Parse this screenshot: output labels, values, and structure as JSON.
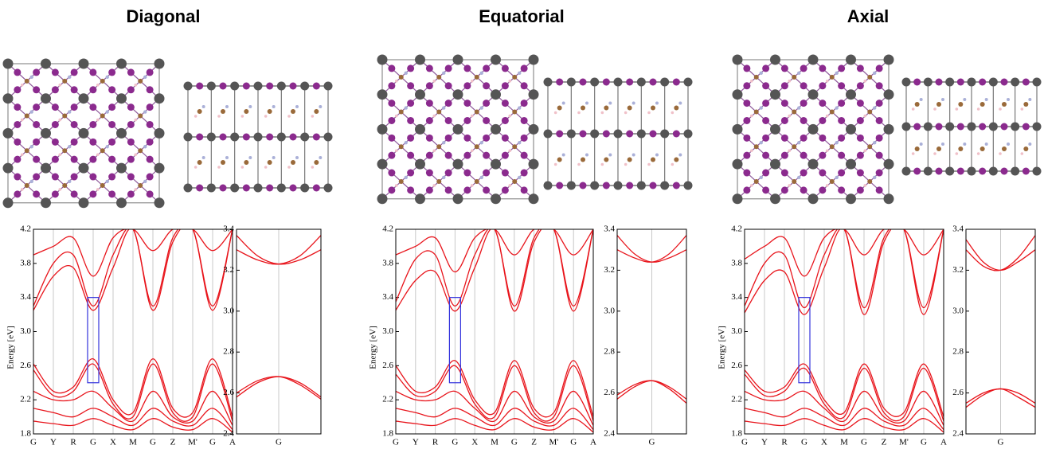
{
  "chart_data": [
    {
      "type": "line",
      "title": "Diagonal",
      "y_label": "Energy [eV]",
      "color": "#e8141b",
      "categories": [
        "G",
        "Y",
        "R",
        "G",
        "X",
        "M",
        "G",
        "Z",
        "M'",
        "G",
        "A"
      ],
      "ylim": [
        1.8,
        4.2
      ],
      "yticks": [
        1.8,
        2.2,
        2.6,
        {
          "value": 3,
          "label": "3.0"
        },
        3.4,
        3.8,
        4.2
      ],
      "series": [
        {
          "values": [
            3.25,
            3.65,
            3.75,
            3.25,
            3.75,
            4.2,
            3.25,
            4.05,
            4.2,
            3.25,
            4.2
          ]
        },
        {
          "values": [
            3.3,
            3.8,
            3.9,
            3.3,
            3.9,
            4.2,
            3.3,
            4.1,
            4.2,
            3.3,
            4.2
          ]
        },
        {
          "values": [
            3.9,
            4.0,
            4.1,
            3.65,
            4.1,
            4.2,
            3.95,
            4.2,
            4.2,
            3.95,
            4.2
          ]
        },
        {
          "values": [
            2.62,
            2.3,
            2.35,
            2.68,
            2.2,
            2.05,
            2.68,
            2.1,
            2.05,
            2.68,
            2.0
          ]
        },
        {
          "values": [
            2.55,
            2.25,
            2.3,
            2.62,
            2.15,
            2.0,
            2.62,
            2.05,
            2.0,
            2.62,
            1.95
          ]
        },
        {
          "values": [
            2.3,
            2.2,
            2.2,
            2.3,
            2.1,
            1.95,
            2.3,
            2.0,
            1.95,
            2.3,
            1.9
          ]
        },
        {
          "values": [
            2.1,
            2.05,
            2.0,
            2.1,
            2.0,
            1.9,
            2.1,
            1.95,
            1.9,
            2.1,
            1.85
          ]
        },
        {
          "values": [
            1.95,
            1.92,
            1.9,
            1.98,
            1.9,
            1.85,
            1.98,
            1.88,
            1.85,
            1.98,
            1.82
          ]
        }
      ]
    },
    {
      "type": "line",
      "color": "#e8141b",
      "x": [
        -1,
        -0.5,
        0,
        0.5,
        1
      ],
      "xlim": [
        -1,
        1
      ],
      "xticks": [
        {
          "value": 0,
          "label": "G"
        }
      ],
      "ylim": [
        2.4,
        3.4
      ],
      "yticks": [
        2.4,
        2.6,
        2.8,
        {
          "value": 3,
          "label": "3.0"
        },
        3.2,
        3.4
      ],
      "series": [
        {
          "values": [
            3.37,
            3.27,
            3.23,
            3.25,
            3.3
          ]
        },
        {
          "values": [
            3.3,
            3.25,
            3.23,
            3.27,
            3.37
          ]
        },
        {
          "values": [
            2.58,
            2.65,
            2.68,
            2.65,
            2.58
          ]
        },
        {
          "values": [
            2.6,
            2.66,
            2.68,
            2.64,
            2.57
          ]
        }
      ]
    },
    {
      "type": "line",
      "title": "Equatorial",
      "y_label": "Energy [eV]",
      "color": "#e8141b",
      "categories": [
        "G",
        "Y",
        "R",
        "G",
        "X",
        "M",
        "G",
        "Z",
        "M'",
        "G",
        "A"
      ],
      "ylim": [
        1.8,
        4.2
      ],
      "yticks": [
        1.8,
        2.2,
        2.6,
        {
          "value": 3,
          "label": "3.0"
        },
        3.4,
        3.8,
        4.2
      ],
      "series": [
        {
          "values": [
            3.25,
            3.6,
            3.7,
            3.24,
            3.75,
            4.2,
            3.24,
            4.05,
            4.2,
            3.24,
            4.2
          ]
        },
        {
          "values": [
            3.35,
            3.85,
            3.9,
            3.3,
            3.9,
            4.2,
            3.3,
            4.1,
            4.2,
            3.3,
            4.2
          ]
        },
        {
          "values": [
            3.9,
            4.0,
            4.1,
            3.7,
            4.1,
            4.2,
            3.9,
            4.2,
            4.2,
            3.9,
            4.2
          ]
        },
        {
          "values": [
            2.6,
            2.3,
            2.35,
            2.66,
            2.2,
            2.05,
            2.66,
            2.1,
            2.05,
            2.66,
            2.0
          ]
        },
        {
          "values": [
            2.5,
            2.25,
            2.3,
            2.6,
            2.15,
            2.0,
            2.6,
            2.05,
            2.0,
            2.6,
            1.95
          ]
        },
        {
          "values": [
            2.3,
            2.2,
            2.2,
            2.3,
            2.1,
            1.95,
            2.3,
            2.0,
            1.95,
            2.3,
            1.9
          ]
        },
        {
          "values": [
            2.1,
            2.05,
            2.0,
            2.1,
            2.0,
            1.9,
            2.1,
            1.95,
            1.9,
            2.1,
            1.85
          ]
        },
        {
          "values": [
            1.95,
            1.92,
            1.9,
            1.98,
            1.9,
            1.85,
            1.98,
            1.88,
            1.85,
            1.98,
            1.82
          ]
        }
      ]
    },
    {
      "type": "line",
      "color": "#e8141b",
      "x": [
        -1,
        -0.5,
        0,
        0.5,
        1
      ],
      "xlim": [
        -1,
        1
      ],
      "xticks": [
        {
          "value": 0,
          "label": "G"
        }
      ],
      "ylim": [
        2.4,
        3.4
      ],
      "yticks": [
        2.4,
        2.6,
        2.8,
        {
          "value": 3,
          "label": "3.0"
        },
        3.2,
        3.4
      ],
      "series": [
        {
          "values": [
            3.37,
            3.28,
            3.24,
            3.26,
            3.3
          ]
        },
        {
          "values": [
            3.3,
            3.26,
            3.24,
            3.28,
            3.37
          ]
        },
        {
          "values": [
            2.57,
            2.63,
            2.66,
            2.63,
            2.57
          ]
        },
        {
          "values": [
            2.59,
            2.64,
            2.66,
            2.62,
            2.55
          ]
        }
      ]
    },
    {
      "type": "line",
      "title": "Axial",
      "y_label": "Energy [eV]",
      "color": "#e8141b",
      "categories": [
        "G",
        "Y",
        "R",
        "G",
        "X",
        "M",
        "G",
        "Z",
        "M'",
        "G",
        "A"
      ],
      "ylim": [
        1.8,
        4.2
      ],
      "yticks": [
        1.8,
        2.2,
        2.6,
        {
          "value": 3,
          "label": "3.0"
        },
        3.4,
        3.8,
        4.2
      ],
      "series": [
        {
          "values": [
            3.22,
            3.6,
            3.7,
            3.2,
            3.75,
            4.2,
            3.2,
            4.05,
            4.2,
            3.2,
            4.2
          ]
        },
        {
          "values": [
            3.3,
            3.8,
            3.9,
            3.28,
            3.9,
            4.2,
            3.28,
            4.1,
            4.2,
            3.28,
            4.2
          ]
        },
        {
          "values": [
            3.85,
            4.0,
            4.1,
            3.65,
            4.1,
            4.2,
            3.9,
            4.2,
            4.2,
            3.9,
            4.2
          ]
        },
        {
          "values": [
            2.55,
            2.3,
            2.35,
            2.62,
            2.2,
            2.05,
            2.62,
            2.1,
            2.05,
            2.62,
            2.0
          ]
        },
        {
          "values": [
            2.5,
            2.25,
            2.3,
            2.57,
            2.15,
            2.0,
            2.57,
            2.05,
            2.0,
            2.57,
            1.95
          ]
        },
        {
          "values": [
            2.3,
            2.2,
            2.2,
            2.3,
            2.1,
            1.95,
            2.3,
            2.0,
            1.95,
            2.3,
            1.9
          ]
        },
        {
          "values": [
            2.1,
            2.05,
            2.0,
            2.1,
            2.0,
            1.9,
            2.1,
            1.95,
            1.9,
            2.1,
            1.85
          ]
        },
        {
          "values": [
            1.95,
            1.92,
            1.9,
            1.98,
            1.9,
            1.85,
            1.98,
            1.88,
            1.85,
            1.98,
            1.82
          ]
        }
      ]
    },
    {
      "type": "line",
      "color": "#e8141b",
      "x": [
        -1,
        -0.5,
        0,
        0.5,
        1
      ],
      "xlim": [
        -1,
        1
      ],
      "xticks": [
        {
          "value": 0,
          "label": "G"
        }
      ],
      "ylim": [
        2.4,
        3.4
      ],
      "yticks": [
        2.4,
        2.6,
        2.8,
        {
          "value": 3,
          "label": "3.0"
        },
        3.2,
        3.4
      ],
      "series": [
        {
          "values": [
            3.35,
            3.24,
            3.2,
            3.24,
            3.3
          ]
        },
        {
          "values": [
            3.3,
            3.22,
            3.2,
            3.26,
            3.37
          ]
        },
        {
          "values": [
            2.55,
            2.6,
            2.62,
            2.6,
            2.55
          ]
        },
        {
          "values": [
            2.53,
            2.59,
            2.62,
            2.58,
            2.53
          ]
        }
      ]
    }
  ]
}
